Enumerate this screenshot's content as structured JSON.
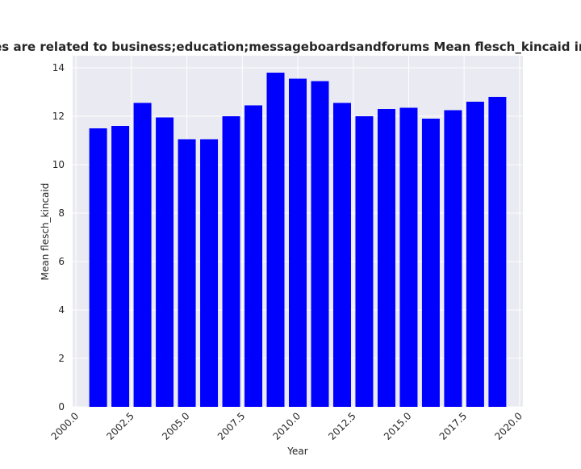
{
  "chart_data": {
    "type": "bar",
    "title": "Sites that have privacy policies are related to business;education;messageboardsandforums Mean flesch_kincaid in privacy policies over the years",
    "xlabel": "Year",
    "ylabel": "Mean flesch_kincaid",
    "x": [
      2001,
      2002,
      2003,
      2004,
      2005,
      2006,
      2007,
      2008,
      2009,
      2010,
      2011,
      2012,
      2013,
      2014,
      2015,
      2016,
      2017,
      2018,
      2019
    ],
    "values": [
      11.5,
      11.6,
      12.55,
      11.95,
      11.05,
      11.05,
      12.0,
      12.45,
      13.8,
      13.55,
      13.45,
      12.55,
      12.0,
      12.3,
      12.35,
      11.9,
      12.25,
      12.6,
      12.8
    ],
    "xlim": [
      1999.85,
      2020.15
    ],
    "ylim": [
      0,
      14.5
    ],
    "xticks": [
      2000.0,
      2002.5,
      2005.0,
      2007.5,
      2010.0,
      2012.5,
      2015.0,
      2017.5,
      2020.0
    ],
    "xtick_labels": [
      "2000.0",
      "2002.5",
      "2005.0",
      "2007.5",
      "2010.0",
      "2012.5",
      "2015.0",
      "2017.5",
      "2020.0"
    ],
    "yticks": [
      0,
      2,
      4,
      6,
      8,
      10,
      12,
      14
    ],
    "ytick_labels": [
      "0",
      "2",
      "4",
      "6",
      "8",
      "10",
      "12",
      "14"
    ],
    "grid": true,
    "colors": {
      "bar": "#0000ff",
      "plot_background": "#eaeaf2",
      "grid": "#ffffff",
      "text": "#262626"
    }
  }
}
